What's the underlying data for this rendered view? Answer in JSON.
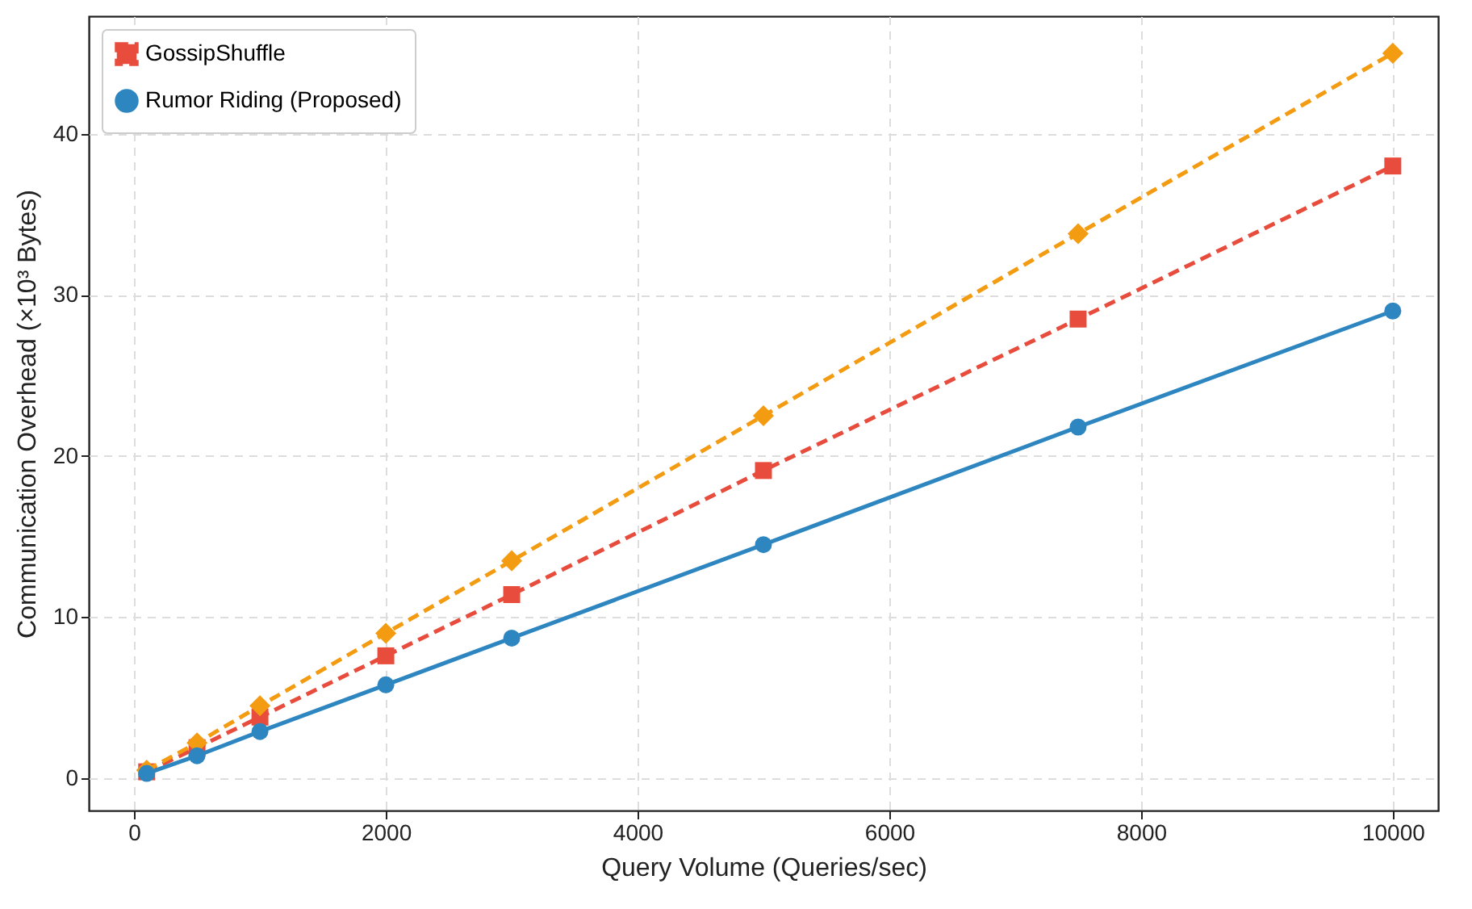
{
  "chart_data": {
    "type": "line",
    "xlabel": "Query Volume (Queries/sec)",
    "ylabel": "Communication Overhead (×10³ Bytes)",
    "x": [
      100,
      500,
      1000,
      2000,
      3000,
      5000,
      7500,
      10000
    ],
    "series": [
      {
        "name": "GossipShuffle",
        "color": "#e74c3c",
        "marker": "square",
        "line_style": "dashed",
        "values": [
          0.4,
          1.9,
          3.8,
          7.6,
          11.4,
          19.1,
          28.5,
          38.0
        ]
      },
      {
        "color": "#f39c12",
        "marker": "diamond",
        "line_style": "dashed",
        "values": [
          0.5,
          2.2,
          4.5,
          9.0,
          13.5,
          22.5,
          33.8,
          45.0
        ]
      },
      {
        "name": "Rumor Riding (Proposed)",
        "color": "#2e86c1",
        "marker": "circle",
        "line_style": "solid",
        "values": [
          0.3,
          1.4,
          2.9,
          5.8,
          8.7,
          14.5,
          21.8,
          29.0
        ]
      }
    ],
    "xlim": [
      -360,
      10360
    ],
    "xticks": [
      0,
      2000,
      4000,
      6000,
      8000,
      10000
    ],
    "ylim": [
      -2,
      47.3
    ],
    "yticks": [
      0,
      10,
      20,
      30,
      40
    ],
    "grid": true,
    "legend": "top left"
  }
}
